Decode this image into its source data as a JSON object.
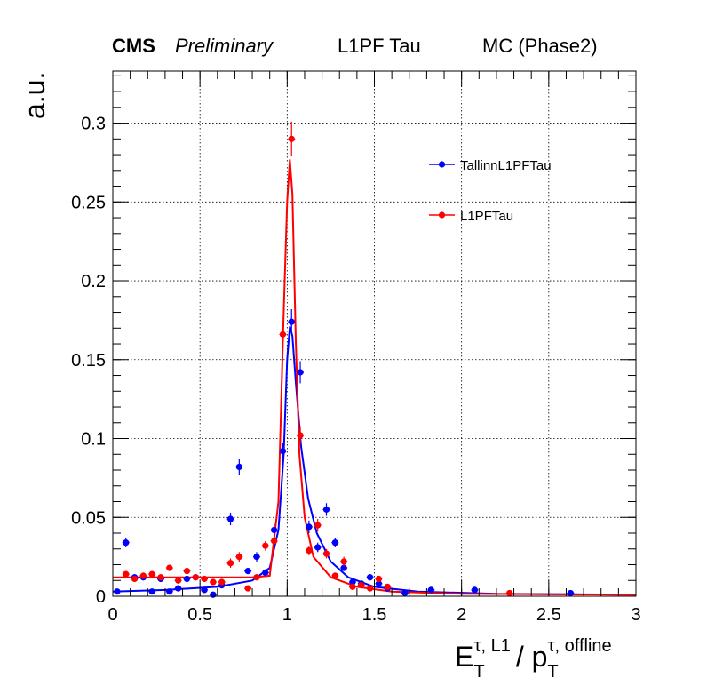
{
  "header": {
    "cms": "CMS",
    "preliminary": "Preliminary",
    "algo": "L1PF Tau",
    "sample": "MC (Phase2)"
  },
  "chart_data": {
    "type": "scatter",
    "title": "",
    "xlabel": "E_T^{τ, L1} / p_T^{τ, offline}",
    "ylabel": "a.u.",
    "xlim": [
      0,
      3
    ],
    "ylim": [
      0,
      0.333
    ],
    "x_ticks": [
      "0",
      "0.5",
      "1",
      "1.5",
      "2",
      "2.5",
      "3"
    ],
    "y_ticks": [
      "0",
      "0.05",
      "0.1",
      "0.15",
      "0.2",
      "0.25",
      "0.3"
    ],
    "x_tick_values": [
      0,
      0.5,
      1,
      1.5,
      2,
      2.5,
      3
    ],
    "y_tick_values": [
      0,
      0.05,
      0.1,
      0.15,
      0.2,
      0.25,
      0.3
    ],
    "grid": true,
    "legend_position": "top-right",
    "series": [
      {
        "name": "TallinnL1PFTau",
        "color": "#0000ff",
        "points": [
          [
            0.025,
            0.003,
            0.001
          ],
          [
            0.075,
            0.034,
            0.003
          ],
          [
            0.125,
            0.012,
            0.002
          ],
          [
            0.175,
            0.012,
            0.002
          ],
          [
            0.225,
            0.003,
            0.001
          ],
          [
            0.275,
            0.011,
            0.002
          ],
          [
            0.325,
            0.003,
            0.001
          ],
          [
            0.375,
            0.005,
            0.001
          ],
          [
            0.425,
            0.011,
            0.002
          ],
          [
            0.475,
            0.012,
            0.002
          ],
          [
            0.525,
            0.004,
            0.001
          ],
          [
            0.575,
            0.001,
            0.001
          ],
          [
            0.625,
            0.007,
            0.002
          ],
          [
            0.675,
            0.049,
            0.004
          ],
          [
            0.725,
            0.082,
            0.005
          ],
          [
            0.775,
            0.016,
            0.002
          ],
          [
            0.825,
            0.025,
            0.003
          ],
          [
            0.875,
            0.015,
            0.002
          ],
          [
            0.925,
            0.042,
            0.004
          ],
          [
            0.975,
            0.092,
            0.005
          ],
          [
            1.025,
            0.174,
            0.008
          ],
          [
            1.075,
            0.142,
            0.007
          ],
          [
            1.125,
            0.044,
            0.004
          ],
          [
            1.175,
            0.031,
            0.003
          ],
          [
            1.225,
            0.055,
            0.004
          ],
          [
            1.275,
            0.034,
            0.003
          ],
          [
            1.325,
            0.018,
            0.002
          ],
          [
            1.375,
            0.009,
            0.002
          ],
          [
            1.425,
            0.008,
            0.002
          ],
          [
            1.475,
            0.012,
            0.002
          ],
          [
            1.525,
            0.008,
            0.002
          ],
          [
            1.575,
            0.005,
            0.001
          ],
          [
            1.675,
            0.002,
            0.001
          ],
          [
            1.825,
            0.004,
            0.001
          ],
          [
            2.075,
            0.004,
            0.001
          ],
          [
            2.625,
            0.002,
            0.001
          ]
        ],
        "fit": [
          [
            0.0,
            0.003
          ],
          [
            0.3,
            0.004
          ],
          [
            0.6,
            0.006
          ],
          [
            0.8,
            0.01
          ],
          [
            0.9,
            0.018
          ],
          [
            0.95,
            0.042
          ],
          [
            0.98,
            0.09
          ],
          [
            1.0,
            0.15
          ],
          [
            1.015,
            0.171
          ],
          [
            1.03,
            0.165
          ],
          [
            1.05,
            0.135
          ],
          [
            1.08,
            0.095
          ],
          [
            1.12,
            0.062
          ],
          [
            1.17,
            0.04
          ],
          [
            1.25,
            0.022
          ],
          [
            1.35,
            0.012
          ],
          [
            1.5,
            0.006
          ],
          [
            1.75,
            0.003
          ],
          [
            2.2,
            0.0015
          ],
          [
            3.0,
            0.001
          ]
        ]
      },
      {
        "name": "L1PFTau",
        "color": "#ff0000",
        "points": [
          [
            0.075,
            0.014,
            0.002
          ],
          [
            0.125,
            0.011,
            0.002
          ],
          [
            0.175,
            0.013,
            0.002
          ],
          [
            0.225,
            0.014,
            0.002
          ],
          [
            0.275,
            0.012,
            0.002
          ],
          [
            0.325,
            0.018,
            0.002
          ],
          [
            0.375,
            0.01,
            0.002
          ],
          [
            0.425,
            0.016,
            0.002
          ],
          [
            0.475,
            0.012,
            0.002
          ],
          [
            0.525,
            0.011,
            0.002
          ],
          [
            0.575,
            0.009,
            0.002
          ],
          [
            0.625,
            0.009,
            0.002
          ],
          [
            0.675,
            0.021,
            0.003
          ],
          [
            0.725,
            0.025,
            0.003
          ],
          [
            0.775,
            0.005,
            0.001
          ],
          [
            0.825,
            0.012,
            0.002
          ],
          [
            0.875,
            0.032,
            0.003
          ],
          [
            0.925,
            0.035,
            0.003
          ],
          [
            0.975,
            0.166,
            0.008
          ],
          [
            1.025,
            0.29,
            0.011
          ],
          [
            1.075,
            0.102,
            0.006
          ],
          [
            1.125,
            0.029,
            0.003
          ],
          [
            1.175,
            0.045,
            0.004
          ],
          [
            1.225,
            0.027,
            0.003
          ],
          [
            1.275,
            0.013,
            0.002
          ],
          [
            1.325,
            0.022,
            0.003
          ],
          [
            1.375,
            0.006,
            0.001
          ],
          [
            1.425,
            0.007,
            0.002
          ],
          [
            1.475,
            0.005,
            0.001
          ],
          [
            1.525,
            0.011,
            0.002
          ],
          [
            1.575,
            0.006,
            0.001
          ],
          [
            2.275,
            0.002,
            0.001
          ]
        ],
        "fit": [
          [
            0.0,
            0.012
          ],
          [
            0.5,
            0.012
          ],
          [
            0.8,
            0.012
          ],
          [
            0.9,
            0.013
          ],
          [
            0.95,
            0.06
          ],
          [
            0.98,
            0.18
          ],
          [
            1.0,
            0.25
          ],
          [
            1.015,
            0.277
          ],
          [
            1.03,
            0.255
          ],
          [
            1.05,
            0.16
          ],
          [
            1.07,
            0.09
          ],
          [
            1.1,
            0.05
          ],
          [
            1.15,
            0.025
          ],
          [
            1.25,
            0.012
          ],
          [
            1.4,
            0.006
          ],
          [
            1.6,
            0.003
          ],
          [
            2.0,
            0.0015
          ],
          [
            3.0,
            0.001
          ]
        ]
      }
    ]
  }
}
